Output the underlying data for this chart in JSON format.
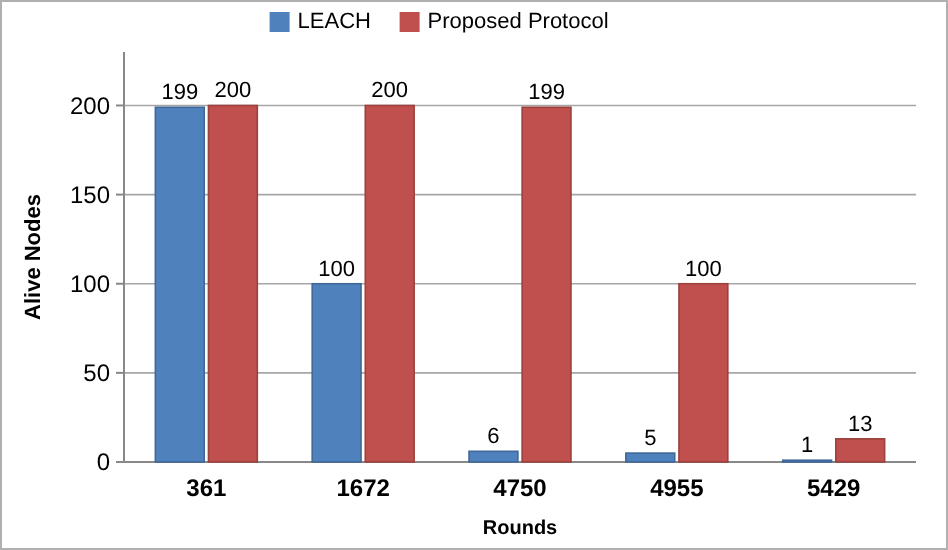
{
  "chart_data": {
    "type": "bar",
    "xlabel": "Rounds",
    "ylabel": "Alive Nodes",
    "categories": [
      "361",
      "1672",
      "4750",
      "4955",
      "5429"
    ],
    "series": [
      {
        "name": "LEACH",
        "color": "#4f81bd",
        "values": [
          199,
          100,
          6,
          5,
          1
        ]
      },
      {
        "name": "Proposed Protocol",
        "color": "#c0504d",
        "values": [
          200,
          200,
          199,
          100,
          13
        ]
      }
    ],
    "ylim": [
      0,
      230
    ],
    "yticks": [
      0,
      50,
      100,
      150,
      200
    ],
    "grid": "y",
    "legend": "top",
    "data_labels": true
  }
}
